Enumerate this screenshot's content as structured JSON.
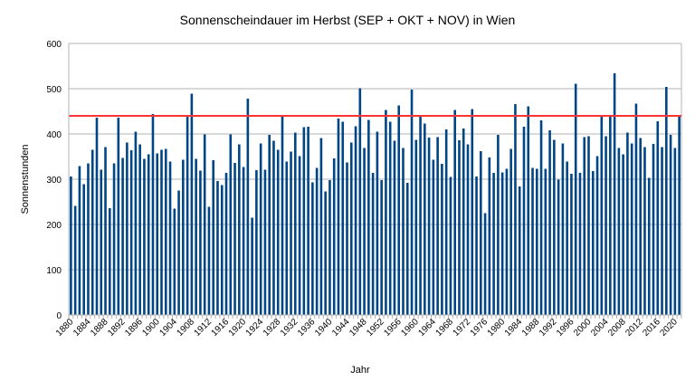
{
  "chart_data": {
    "type": "bar",
    "title": "Sonnenscheindauer im Herbst (SEP + OKT + NOV) in Wien",
    "xlabel": "Jahr",
    "ylabel": "Sonnenstunden",
    "ylim": [
      0,
      600
    ],
    "yticks": [
      0,
      100,
      200,
      300,
      400,
      500,
      600
    ],
    "grid": true,
    "x_label_every": 4,
    "x_start": 1880,
    "bar_color": "#004586",
    "reference_line": {
      "value": 440,
      "color": "#ff3333"
    },
    "x": [
      1880,
      1881,
      1882,
      1883,
      1884,
      1885,
      1886,
      1887,
      1888,
      1889,
      1890,
      1891,
      1892,
      1893,
      1894,
      1895,
      1896,
      1897,
      1898,
      1899,
      1900,
      1901,
      1902,
      1903,
      1904,
      1905,
      1906,
      1907,
      1908,
      1909,
      1910,
      1911,
      1912,
      1913,
      1914,
      1915,
      1916,
      1917,
      1918,
      1919,
      1920,
      1921,
      1922,
      1923,
      1924,
      1925,
      1926,
      1927,
      1928,
      1929,
      1930,
      1931,
      1932,
      1933,
      1934,
      1935,
      1936,
      1937,
      1938,
      1939,
      1940,
      1941,
      1942,
      1943,
      1944,
      1945,
      1946,
      1947,
      1948,
      1949,
      1950,
      1951,
      1952,
      1953,
      1954,
      1955,
      1956,
      1957,
      1958,
      1959,
      1960,
      1961,
      1962,
      1963,
      1964,
      1965,
      1966,
      1967,
      1968,
      1969,
      1970,
      1971,
      1972,
      1973,
      1974,
      1975,
      1976,
      1977,
      1978,
      1979,
      1980,
      1981,
      1982,
      1983,
      1984,
      1985,
      1986,
      1987,
      1988,
      1989,
      1990,
      1991,
      1992,
      1993,
      1994,
      1995,
      1996,
      1997,
      1998,
      1999,
      2000,
      2001,
      2002,
      2003,
      2004,
      2005,
      2006,
      2007,
      2008,
      2009,
      2010,
      2011,
      2012,
      2013,
      2014,
      2015,
      2016,
      2017,
      2018,
      2019,
      2020,
      2021
    ],
    "values": [
      306,
      241,
      329,
      289,
      335,
      365,
      436,
      321,
      371,
      236,
      335,
      436,
      347,
      381,
      364,
      405,
      377,
      345,
      355,
      444,
      357,
      365,
      367,
      339,
      235,
      275,
      343,
      439,
      489,
      345,
      319,
      399,
      239,
      342,
      296,
      287,
      314,
      399,
      336,
      377,
      327,
      478,
      215,
      320,
      379,
      321,
      398,
      385,
      365,
      441,
      339,
      361,
      403,
      351,
      415,
      416,
      293,
      325,
      391,
      273,
      298,
      346,
      434,
      427,
      337,
      381,
      417,
      501,
      369,
      431,
      314,
      405,
      298,
      453,
      427,
      385,
      463,
      369,
      292,
      498,
      387,
      440,
      423,
      392,
      343,
      393,
      334,
      410,
      305,
      453,
      386,
      412,
      377,
      455,
      306,
      362,
      225,
      348,
      314,
      398,
      315,
      323,
      367,
      466,
      284,
      416,
      461,
      325,
      323,
      430,
      323,
      408,
      387,
      299,
      379,
      339,
      312,
      511,
      314,
      393,
      395,
      318,
      351,
      440,
      395,
      440,
      534,
      369,
      355,
      403,
      379,
      467,
      391,
      371,
      303,
      378,
      428,
      371,
      504,
      398,
      369,
      440
    ]
  }
}
